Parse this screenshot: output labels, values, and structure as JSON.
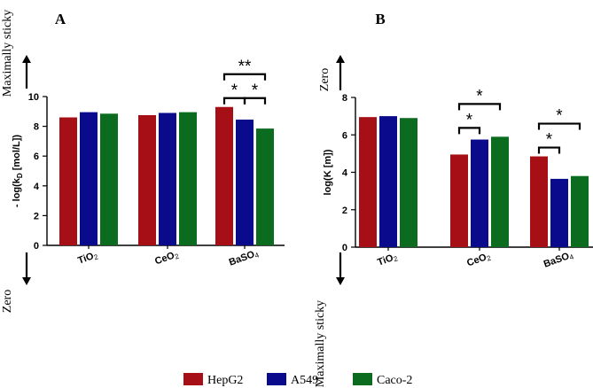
{
  "legend": [
    {
      "name": "HepG2",
      "color": "#a50f15"
    },
    {
      "name": "A549",
      "color": "#0a0a8c"
    },
    {
      "name": "Caco-2",
      "color": "#0b6b1e"
    }
  ],
  "chart_data": [
    {
      "type": "bar",
      "panel_label": "A",
      "ylabel_main": "- log(k",
      "ylabel_sub": "D",
      "ylabel_tail": " [mol/L])",
      "top_annotation": "Maximally sticky",
      "bottom_annotation": "Zero",
      "ylim": [
        0,
        10
      ],
      "yticks": [
        "0",
        "2",
        "4",
        "6",
        "8",
        "10"
      ],
      "categories": [
        {
          "main": "TiO",
          "sub": "2"
        },
        {
          "main": "CeO",
          "sub": "2"
        },
        {
          "main": "BaSO",
          "sub": "4"
        }
      ],
      "series": [
        {
          "name": "HepG2",
          "values": [
            8.6,
            8.75,
            9.3
          ]
        },
        {
          "name": "A549",
          "values": [
            8.95,
            8.9,
            8.45
          ]
        },
        {
          "name": "Caco-2",
          "values": [
            8.85,
            8.95,
            7.85
          ]
        }
      ],
      "significance": [
        {
          "category": 2,
          "from": 0,
          "to": 1,
          "label": "*",
          "level": 0
        },
        {
          "category": 2,
          "from": 1,
          "to": 2,
          "label": "*",
          "level": 0
        },
        {
          "category": 2,
          "from": 0,
          "to": 2,
          "label": "**",
          "level": 1
        }
      ]
    },
    {
      "type": "bar",
      "panel_label": "B",
      "ylabel_main": "log(K [m])",
      "top_annotation": "Zero",
      "bottom_annotation": "Maximally sticky",
      "ylim": [
        0,
        8
      ],
      "yticks": [
        "0",
        "2",
        "4",
        "6",
        "8"
      ],
      "categories": [
        {
          "main": "TiO",
          "sub": "2"
        },
        {
          "main": "CeO",
          "sub": "2"
        },
        {
          "main": "BaSO",
          "sub": "4"
        }
      ],
      "series": [
        {
          "name": "HepG2",
          "values": [
            6.95,
            4.95,
            4.85
          ]
        },
        {
          "name": "A549",
          "values": [
            7.0,
            5.75,
            3.65
          ]
        },
        {
          "name": "Caco-2",
          "values": [
            6.9,
            5.9,
            3.8
          ]
        }
      ],
      "significance": [
        {
          "category": 1,
          "from": 0,
          "to": 1,
          "label": "*",
          "level": 0
        },
        {
          "category": 1,
          "from": 0,
          "to": 2,
          "label": "*",
          "level": 1
        },
        {
          "category": 2,
          "from": 0,
          "to": 1,
          "label": "*",
          "level": 0
        },
        {
          "category": 2,
          "from": 0,
          "to": 2,
          "label": "*",
          "level": 1
        }
      ]
    }
  ]
}
